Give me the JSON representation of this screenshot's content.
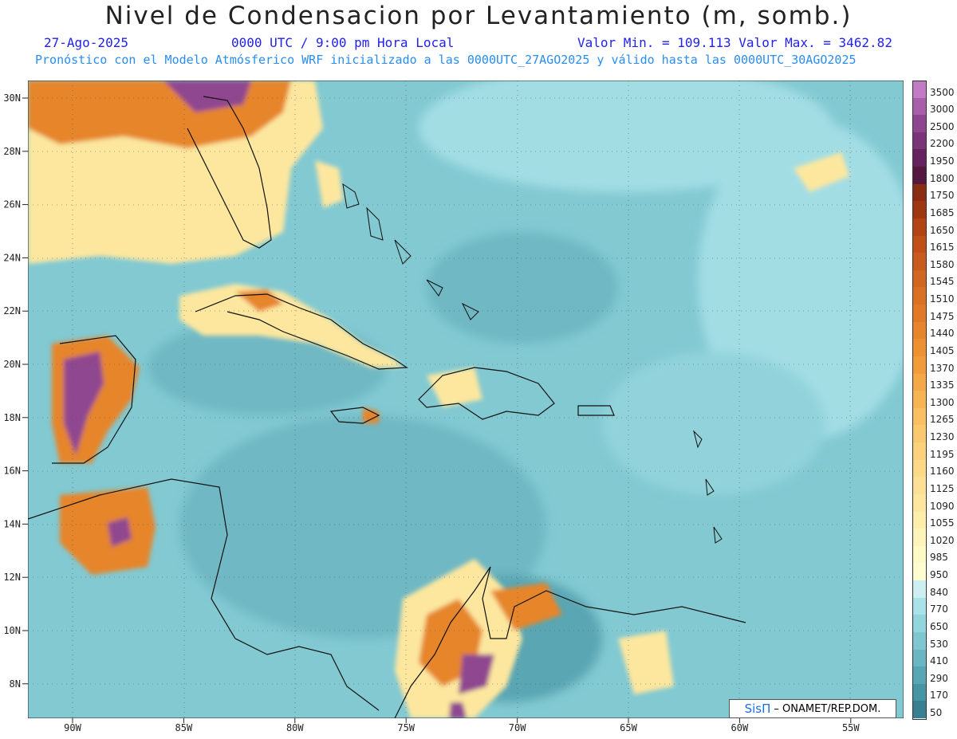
{
  "title": "Nivel de Condensacion por Levantamiento (m, somb.)",
  "date": "27-Ago-2025",
  "time": "0000 UTC / 9:00 pm Hora Local",
  "minmax": "Valor Min. = 109.113  Valor Max. = 3462.82",
  "forecast": "Pronóstico con el Modelo Atmósferico WRF inicializado a las 0000UTC_27AGO2025 y válido hasta las  0000UTC_30AGO2025",
  "credit": {
    "brand": "SisΠ",
    "org": "– ONAMET/REP.DOM."
  },
  "axes": {
    "lat_labels": [
      "30N",
      "28N",
      "26N",
      "24N",
      "22N",
      "20N",
      "18N",
      "16N",
      "14N",
      "12N",
      "10N",
      "8N"
    ],
    "lon_labels": [
      "90W",
      "85W",
      "80W",
      "75W",
      "70W",
      "65W",
      "60W",
      "55W"
    ]
  },
  "colorbar": {
    "labels": [
      "3500",
      "3000",
      "2500",
      "2200",
      "1950",
      "1800",
      "1750",
      "1685",
      "1650",
      "1615",
      "1580",
      "1545",
      "1510",
      "1475",
      "1440",
      "1405",
      "1370",
      "1335",
      "1300",
      "1265",
      "1230",
      "1195",
      "1160",
      "1125",
      "1090",
      "1055",
      "1020",
      "985",
      "950",
      "840",
      "770",
      "650",
      "530",
      "410",
      "290",
      "170",
      "50"
    ],
    "colors": [
      "#c37bc3",
      "#a85ea8",
      "#8f4690",
      "#7a3478",
      "#66225e",
      "#55183f",
      "#8b2d12",
      "#9e3812",
      "#b24414",
      "#c05018",
      "#c95c1c",
      "#d16620",
      "#d97024",
      "#e07a28",
      "#e6852c",
      "#ec9032",
      "#f19c3a",
      "#f4a848",
      "#f7b455",
      "#f9bf62",
      "#fac96f",
      "#fbd27b",
      "#fcd987",
      "#fde093",
      "#fde79f",
      "#fdeeac",
      "#fef4b9",
      "#fefac6",
      "#fefdd2",
      "#cdeff2",
      "#a9e2e8",
      "#92d5dd",
      "#7ec6d0",
      "#6ab6c2",
      "#58a5b3",
      "#4695a4",
      "#377f91"
    ]
  },
  "colors": {
    "ocean": "#7fc7d0",
    "deep": "#5aa9b6",
    "land_warm": "#fde79f",
    "land_hot": "#d97024",
    "land_peak": "#8f4690"
  }
}
